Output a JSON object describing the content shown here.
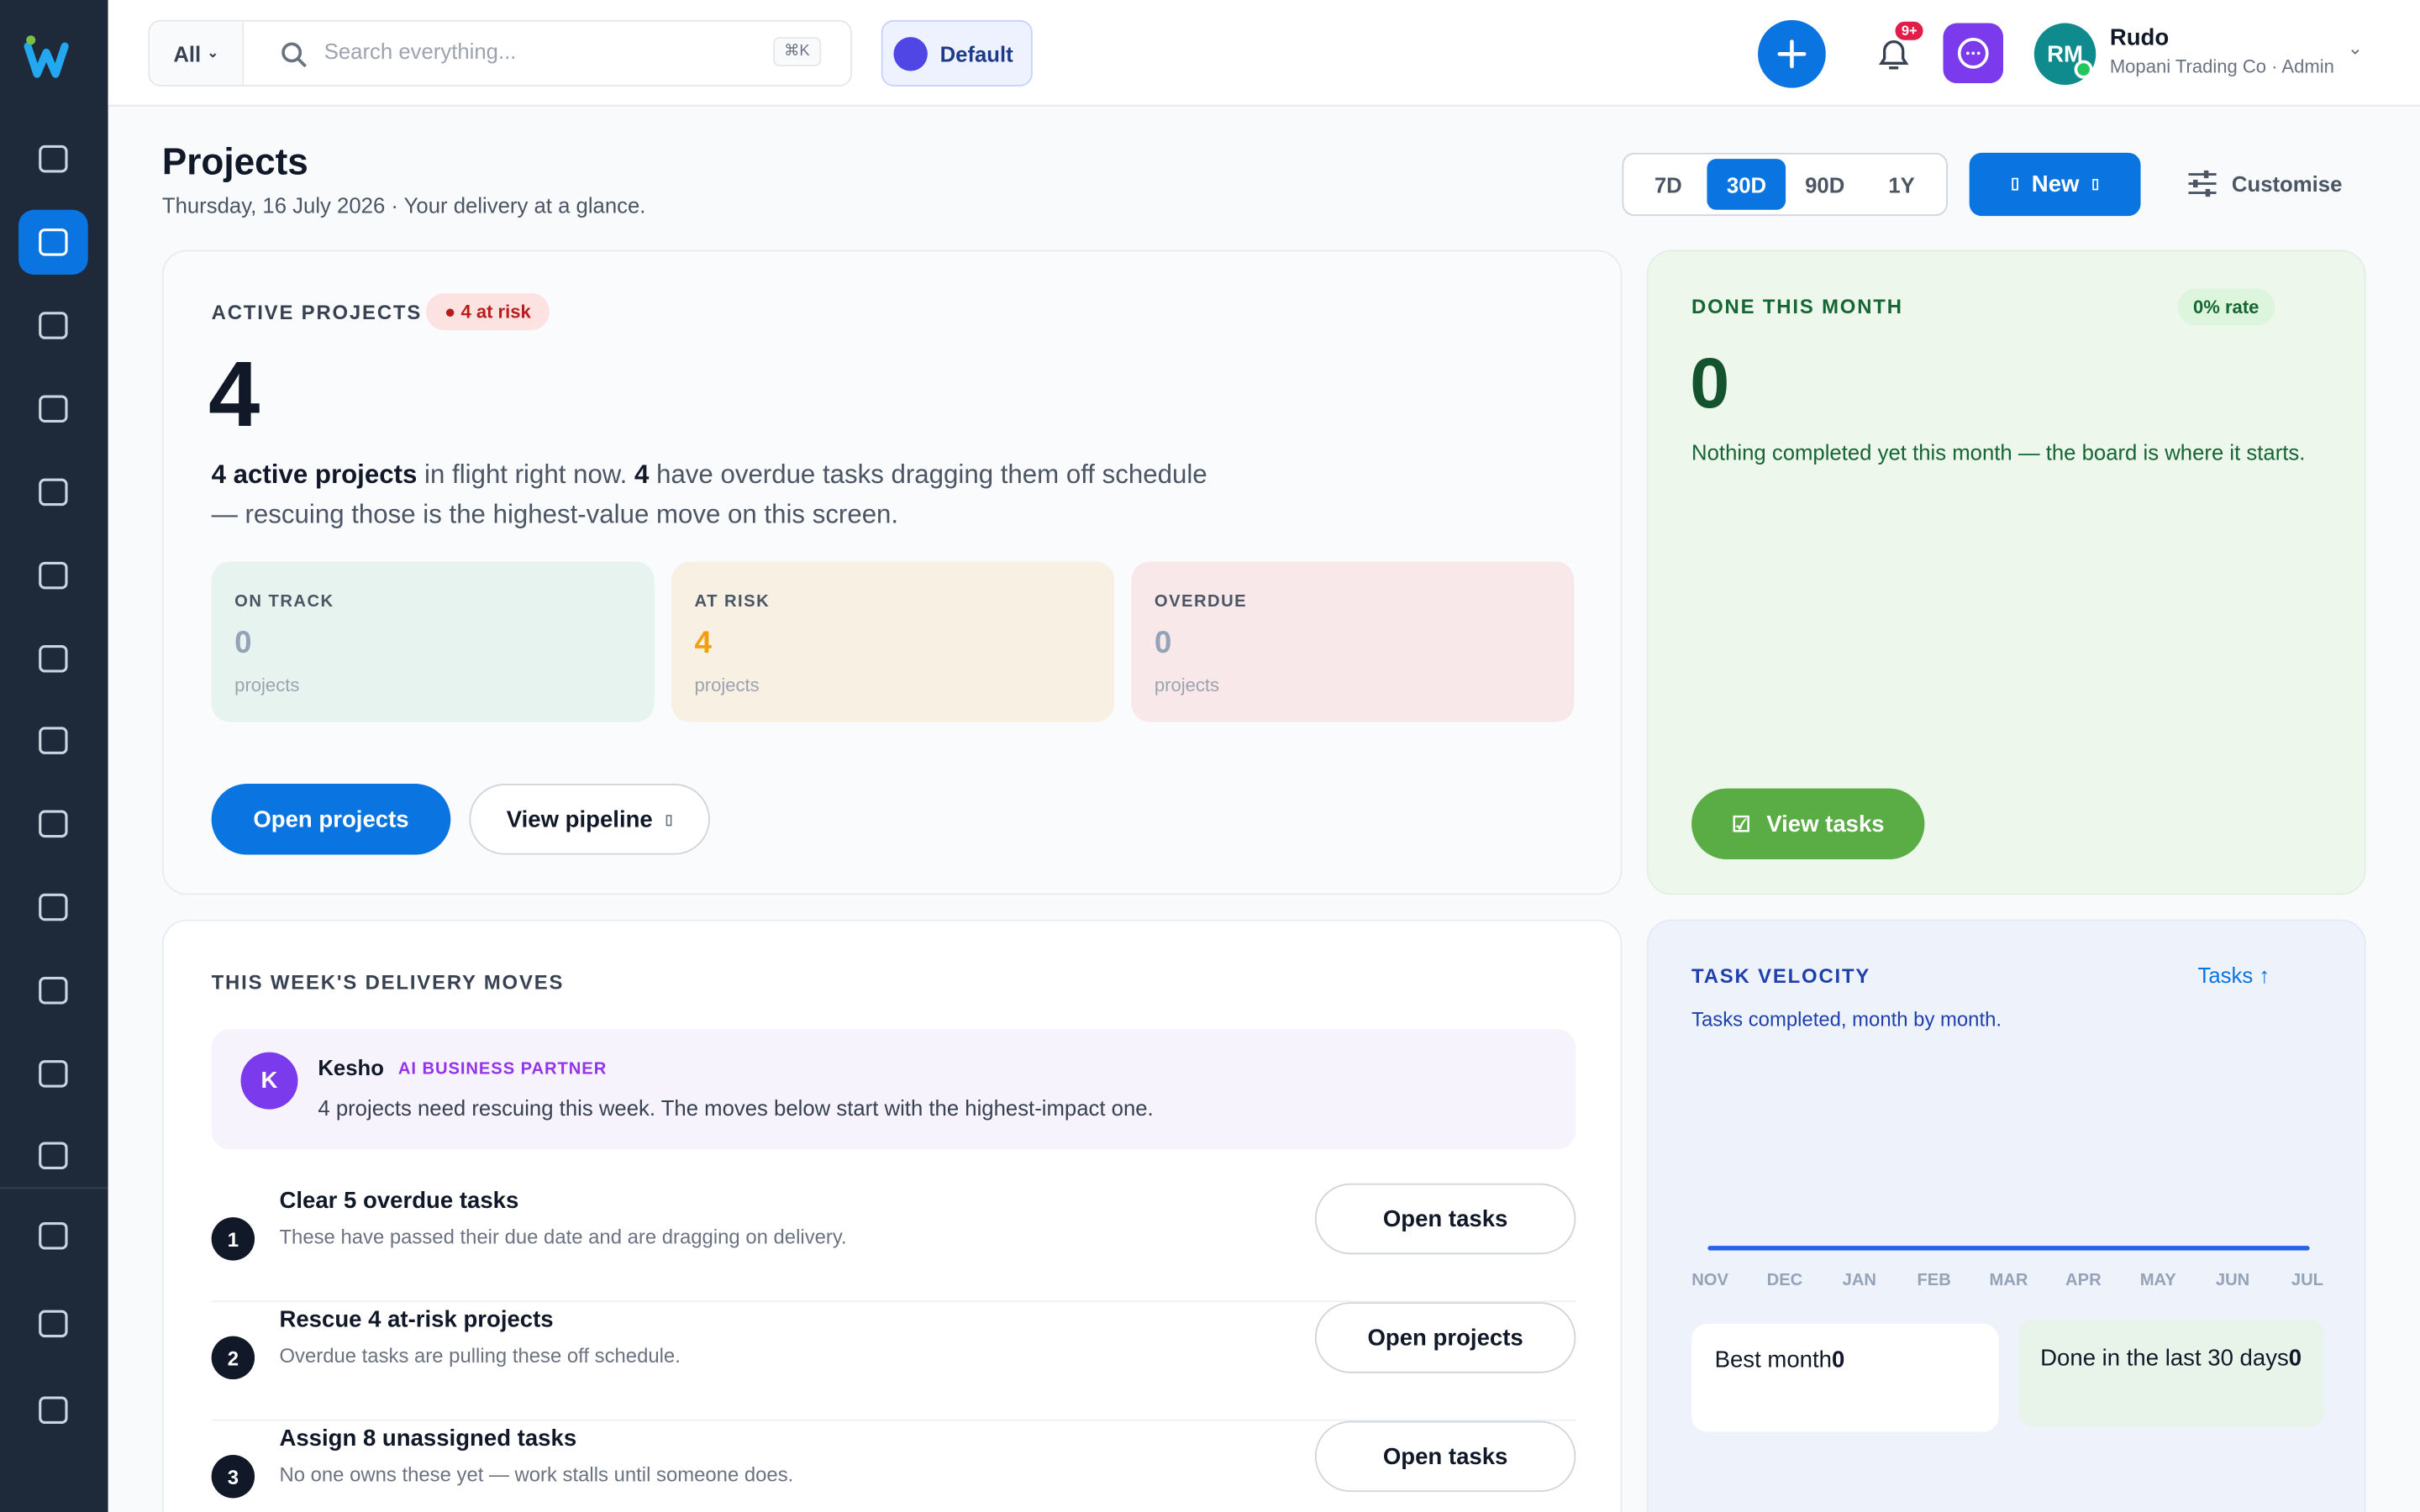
{
  "topbar": {
    "filter": "All",
    "search_placeholder": "Search everything...",
    "shortcut": "⌘K",
    "workspace": "Default",
    "notification_badge": "9+",
    "user": {
      "initials": "RM",
      "name": "Rudo",
      "subtitle": "Mopani Trading Co · Admin"
    }
  },
  "header": {
    "title": "Projects",
    "subtitle": "Thursday, 16 July 2026 · Your delivery at a glance.",
    "ranges": [
      "7D",
      "30D",
      "90D",
      "1Y"
    ],
    "active_range": 1,
    "new_button": "New",
    "customise": "Customise"
  },
  "active": {
    "label": "ACTIVE PROJECTS",
    "badge": "4 at risk",
    "count": 4,
    "summary": [
      "4 active projects",
      " in flight right now. ",
      "4",
      " have overdue tasks dragging them off schedule — rescuing those is the highest-value move on this screen."
    ],
    "stats": [
      {
        "label": "ON TRACK",
        "value": 0,
        "unit": "projects"
      },
      {
        "label": "AT RISK",
        "value": 4,
        "unit": "projects"
      },
      {
        "label": "OVERDUE",
        "value": 0,
        "unit": "projects"
      }
    ],
    "buttons": [
      "Open projects",
      "View pipeline"
    ]
  },
  "done": {
    "label": "DONE THIS MONTH",
    "badge": "0% rate",
    "count": 0,
    "text": "Nothing completed yet this month — the board is where it starts.",
    "button": "View tasks"
  },
  "moves": {
    "title": "THIS WEEK'S DELIVERY MOVES",
    "assistant": {
      "initial": "K",
      "name": "Kesho",
      "role": "AI BUSINESS PARTNER",
      "message": "4 projects need rescuing this week. The moves below start with the highest-impact one."
    },
    "items": [
      {
        "number": 1,
        "title": "Clear 5 overdue tasks",
        "text": "These have passed their due date and are dragging on delivery.",
        "action": "Open tasks"
      },
      {
        "number": 2,
        "title": "Rescue 4 at-risk projects",
        "text": "Overdue tasks are pulling these off schedule.",
        "action": "Open projects"
      },
      {
        "number": 3,
        "title": "Assign 8 unassigned tasks",
        "text": "No one owns these yet — work stalls until someone does.",
        "action": "Open tasks"
      }
    ]
  },
  "velocity": {
    "title": "TASK VELOCITY",
    "link": "Tasks ↑",
    "subtitle": "Tasks completed, month by month.",
    "chart": {
      "type": "line",
      "categories": [
        "NOV",
        "DEC",
        "JAN",
        "FEB",
        "MAR",
        "APR",
        "MAY",
        "JUN",
        "JUL"
      ],
      "values": [
        0,
        0,
        0,
        0,
        0,
        0,
        0,
        0,
        0
      ],
      "color": "#2563eb"
    },
    "stats": [
      {
        "label": "Best month",
        "value": 0
      },
      {
        "label": "Done in the last 30 days",
        "value": 0
      }
    ]
  }
}
